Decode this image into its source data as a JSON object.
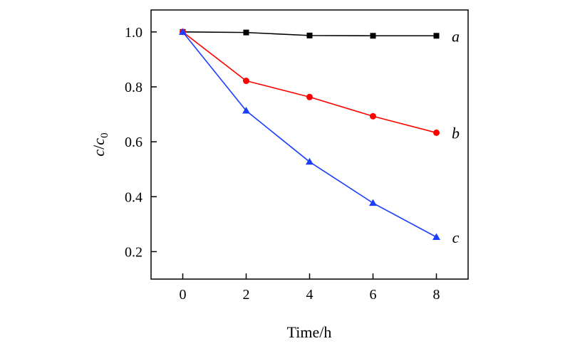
{
  "chart_data": {
    "type": "line",
    "title": "",
    "xlabel": "Time/h",
    "ylabel_parts": {
      "c": "c",
      "slash": "/",
      "c0_base": "c",
      "c0_sub": "0"
    },
    "xlim": [
      -1,
      9
    ],
    "ylim": [
      0.1,
      1.08
    ],
    "x_ticks": [
      0,
      2,
      4,
      6,
      8
    ],
    "x_tick_labels": [
      "0",
      "2",
      "4",
      "6",
      "8"
    ],
    "y_ticks": [
      0.2,
      0.4,
      0.6,
      0.8,
      1.0
    ],
    "y_tick_labels": [
      "0.2",
      "0.4",
      "0.6",
      "0.8",
      "1.0"
    ],
    "grid": false,
    "x": [
      0,
      2,
      4,
      6,
      8
    ],
    "series": [
      {
        "name": "a",
        "marker": "square",
        "color": "#000000",
        "values": [
          1.0,
          0.998,
          0.987,
          0.986,
          0.986
        ]
      },
      {
        "name": "b",
        "marker": "circle",
        "color": "#ff0000",
        "values": [
          1.0,
          0.822,
          0.763,
          0.693,
          0.633
        ]
      },
      {
        "name": "c",
        "marker": "triangle",
        "color": "#1a3fff",
        "values": [
          1.0,
          0.713,
          0.527,
          0.377,
          0.253
        ]
      }
    ]
  }
}
